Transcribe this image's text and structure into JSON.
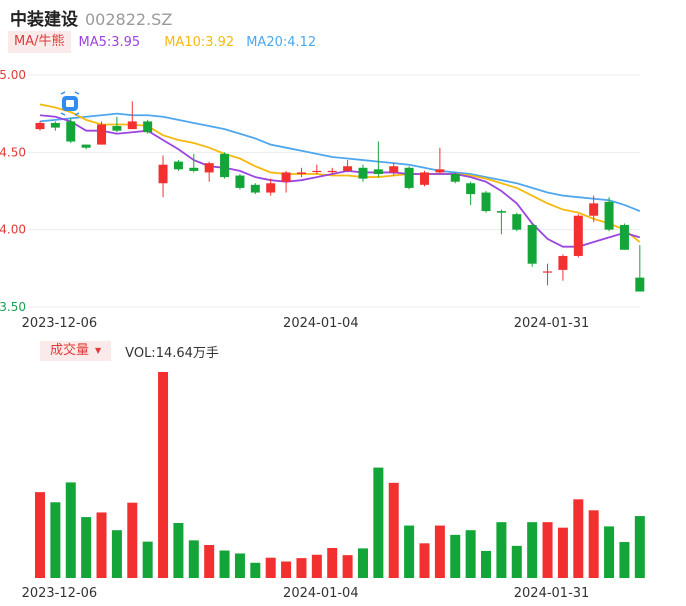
{
  "header": {
    "name": "中装建设",
    "code": "002822.SZ"
  },
  "ma_panel": {
    "toggle_label": "MA/牛熊",
    "ma5_label": "MA5:3.95",
    "ma10_label": "MA10:3.92",
    "ma20_label": "MA20:4.12"
  },
  "vol_panel": {
    "toggle_label": "成交量",
    "toggle_caret": "▼",
    "vol_label": "VOL:14.64万手"
  },
  "colors": {
    "up": "#f23030",
    "down": "#13a538",
    "ma5": "#9b45e0",
    "ma10": "#f5b90f",
    "ma20": "#4ea7ee",
    "axis_label": "#e03b3b",
    "axis_label_low": "#1aa052"
  },
  "chart_data": [
    {
      "type": "candlestick",
      "ylim": [
        3.5,
        5.0
      ],
      "y_ticks": [
        "5.00",
        "4.50",
        "4.00",
        "3.50"
      ],
      "x_tick_labels": [
        {
          "index": 1,
          "label": "2023-12-06"
        },
        {
          "index": 18,
          "label": "2024-01-04"
        },
        {
          "index": 33,
          "label": "2024-01-31"
        }
      ],
      "candles": [
        {
          "o": 4.65,
          "c": 4.69,
          "h": 4.7,
          "l": 4.64
        },
        {
          "o": 4.69,
          "c": 4.66,
          "h": 4.7,
          "l": 4.64
        },
        {
          "o": 4.7,
          "c": 4.57,
          "h": 4.72,
          "l": 4.56
        },
        {
          "o": 4.55,
          "c": 4.53,
          "h": 4.55,
          "l": 4.52
        },
        {
          "o": 4.55,
          "c": 4.68,
          "h": 4.7,
          "l": 4.55
        },
        {
          "o": 4.67,
          "c": 4.64,
          "h": 4.73,
          "l": 4.63
        },
        {
          "o": 4.65,
          "c": 4.7,
          "h": 4.83,
          "l": 4.65
        },
        {
          "o": 4.7,
          "c": 4.63,
          "h": 4.71,
          "l": 4.62
        },
        {
          "o": 4.3,
          "c": 4.42,
          "h": 4.48,
          "l": 4.21
        },
        {
          "o": 4.44,
          "c": 4.39,
          "h": 4.45,
          "l": 4.38
        },
        {
          "o": 4.4,
          "c": 4.38,
          "h": 4.49,
          "l": 4.37
        },
        {
          "o": 4.37,
          "c": 4.43,
          "h": 4.44,
          "l": 4.31
        },
        {
          "o": 4.49,
          "c": 4.34,
          "h": 4.5,
          "l": 4.33
        },
        {
          "o": 4.35,
          "c": 4.27,
          "h": 4.36,
          "l": 4.26
        },
        {
          "o": 4.29,
          "c": 4.24,
          "h": 4.3,
          "l": 4.23
        },
        {
          "o": 4.24,
          "c": 4.3,
          "h": 4.33,
          "l": 4.22
        },
        {
          "o": 4.31,
          "c": 4.37,
          "h": 4.38,
          "l": 4.24
        },
        {
          "o": 4.36,
          "c": 4.37,
          "h": 4.4,
          "l": 4.34
        },
        {
          "o": 4.38,
          "c": 4.38,
          "h": 4.42,
          "l": 4.36
        },
        {
          "o": 4.38,
          "c": 4.38,
          "h": 4.4,
          "l": 4.36
        },
        {
          "o": 4.38,
          "c": 4.41,
          "h": 4.45,
          "l": 4.37
        },
        {
          "o": 4.4,
          "c": 4.33,
          "h": 4.42,
          "l": 4.31
        },
        {
          "o": 4.39,
          "c": 4.36,
          "h": 4.57,
          "l": 4.34
        },
        {
          "o": 4.37,
          "c": 4.41,
          "h": 4.43,
          "l": 4.35
        },
        {
          "o": 4.4,
          "c": 4.27,
          "h": 4.41,
          "l": 4.26
        },
        {
          "o": 4.29,
          "c": 4.37,
          "h": 4.38,
          "l": 4.28
        },
        {
          "o": 4.37,
          "c": 4.39,
          "h": 4.53,
          "l": 4.36
        },
        {
          "o": 4.36,
          "c": 4.31,
          "h": 4.37,
          "l": 4.3
        },
        {
          "o": 4.3,
          "c": 4.23,
          "h": 4.31,
          "l": 4.16
        },
        {
          "o": 4.24,
          "c": 4.12,
          "h": 4.25,
          "l": 4.11
        },
        {
          "o": 4.12,
          "c": 4.11,
          "h": 4.13,
          "l": 3.97
        },
        {
          "o": 4.1,
          "c": 4.0,
          "h": 4.11,
          "l": 3.99
        },
        {
          "o": 4.03,
          "c": 3.78,
          "h": 4.04,
          "l": 3.76
        },
        {
          "o": 3.73,
          "c": 3.73,
          "h": 3.78,
          "l": 3.64
        },
        {
          "o": 3.74,
          "c": 3.83,
          "h": 3.84,
          "l": 3.67
        },
        {
          "o": 3.83,
          "c": 4.09,
          "h": 4.1,
          "l": 3.82
        },
        {
          "o": 4.09,
          "c": 4.17,
          "h": 4.22,
          "l": 4.05
        },
        {
          "o": 4.18,
          "c": 4.0,
          "h": 4.21,
          "l": 3.99
        },
        {
          "o": 4.03,
          "c": 3.87,
          "h": 4.04,
          "l": 3.87
        },
        {
          "o": 3.69,
          "c": 3.6,
          "h": 3.9,
          "l": 3.6
        }
      ],
      "ma5": [
        4.74,
        4.73,
        4.7,
        4.64,
        4.64,
        4.62,
        4.63,
        4.64,
        4.58,
        4.52,
        4.45,
        4.41,
        4.4,
        4.38,
        4.34,
        4.32,
        4.31,
        4.32,
        4.34,
        4.36,
        4.38,
        4.37,
        4.37,
        4.37,
        4.36,
        4.36,
        4.36,
        4.36,
        4.34,
        4.31,
        4.25,
        4.17,
        4.04,
        3.94,
        3.89,
        3.89,
        3.92,
        3.95,
        3.98,
        3.95
      ],
      "ma10": [
        4.81,
        4.79,
        4.76,
        4.71,
        4.68,
        4.68,
        4.68,
        4.67,
        4.61,
        4.58,
        4.56,
        4.53,
        4.49,
        4.46,
        4.41,
        4.37,
        4.36,
        4.36,
        4.36,
        4.35,
        4.35,
        4.34,
        4.34,
        4.35,
        4.36,
        4.36,
        4.36,
        4.36,
        4.35,
        4.33,
        4.3,
        4.27,
        4.22,
        4.17,
        4.13,
        4.11,
        4.07,
        4.04,
        4.0,
        3.92
      ],
      "ma20": [
        4.7,
        4.71,
        4.72,
        4.73,
        4.74,
        4.75,
        4.74,
        4.74,
        4.73,
        4.71,
        4.69,
        4.67,
        4.65,
        4.62,
        4.59,
        4.55,
        4.53,
        4.51,
        4.49,
        4.47,
        4.46,
        4.45,
        4.44,
        4.43,
        4.42,
        4.4,
        4.38,
        4.37,
        4.36,
        4.34,
        4.32,
        4.3,
        4.27,
        4.24,
        4.22,
        4.21,
        4.2,
        4.19,
        4.16,
        4.12
      ]
    },
    {
      "type": "bar",
      "series": "volume",
      "units": "万手",
      "values": [
        20.3,
        17.9,
        22.6,
        14.4,
        15.5,
        11.3,
        17.8,
        8.6,
        48.7,
        13.0,
        8.9,
        7.8,
        6.5,
        5.8,
        3.6,
        4.8,
        3.9,
        4.7,
        5.5,
        7.1,
        5.4,
        7.0,
        26.1,
        22.5,
        12.4,
        8.2,
        12.4,
        10.2,
        11.3,
        6.4,
        13.2,
        7.6,
        13.2,
        13.2,
        11.9,
        18.6,
        16.0,
        12.2,
        8.5,
        14.64
      ]
    }
  ]
}
